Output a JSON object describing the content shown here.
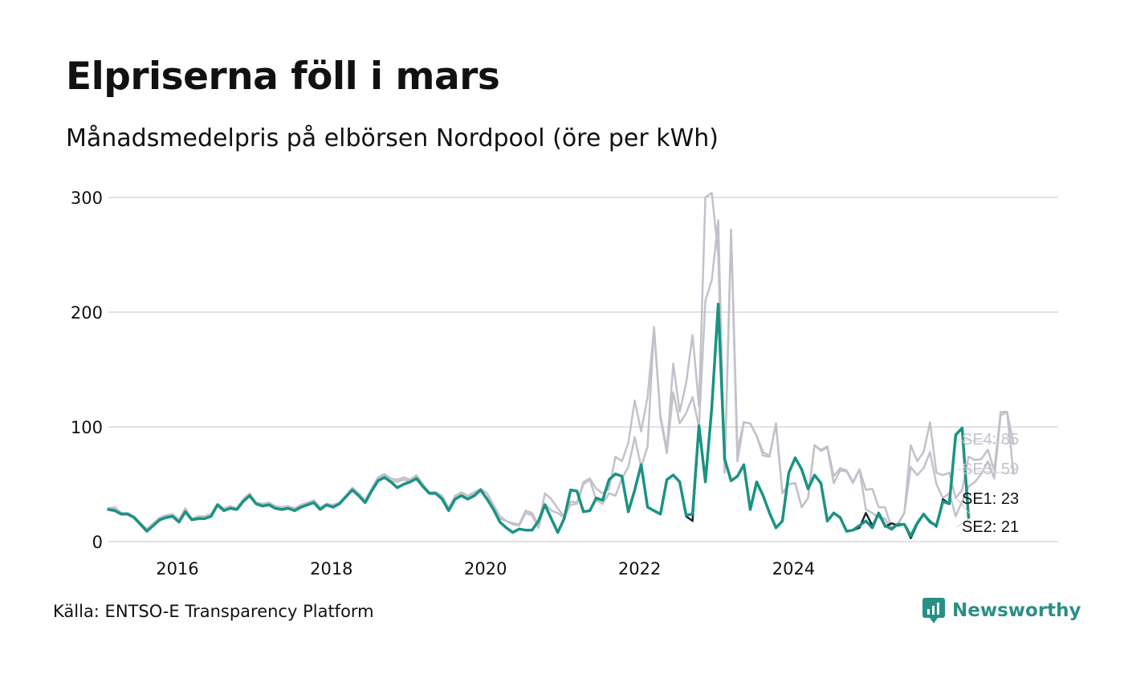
{
  "title": "Elpriserna föll i mars",
  "subtitle": "Månadsmedelpris på elbörsen Nordpool (öre per kWh)",
  "source": "Källa: ENTSO-E Transparency Platform",
  "brand": "Newsworthy",
  "colors": {
    "SE1": "#1b2b2a",
    "SE2": "#1a9383",
    "SE3": "#c2c1cb",
    "SE4": "#c2c1cb",
    "grid": "#e1e1e6",
    "brand": "#2a8f86"
  },
  "chart_data": {
    "type": "line",
    "title": "Elpriserna föll i mars",
    "subtitle": "Månadsmedelpris på elbörsen Nordpool (öre per kWh)",
    "xlabel": "",
    "ylabel": "",
    "ylim": [
      0,
      300
    ],
    "yticks": [
      "0",
      "100",
      "200",
      "300"
    ],
    "ytick_values": [
      0,
      100,
      200,
      300
    ],
    "xlim": [
      2015.0,
      2027.33
    ],
    "xticks": [
      "2016",
      "2018",
      "2020",
      "2022",
      "2024"
    ],
    "xtick_values": [
      2016.0,
      2018.0,
      2020.0,
      2022.0,
      2024.0
    ],
    "x_start": 2015.0,
    "x_step": 0.0833333,
    "grid": true,
    "legend": "end labels at right",
    "end_labels": [
      "SE4: 85",
      "SE3: 59",
      "SE1: 23",
      "SE2: 21"
    ],
    "series": [
      {
        "name": "SE3",
        "end_label": "SE3: 59",
        "values": [
          29,
          29,
          24,
          24,
          21,
          15,
          10,
          15,
          20,
          22,
          23,
          18,
          27,
          19,
          21,
          21,
          23,
          32,
          28,
          30,
          28,
          36,
          41,
          33,
          32,
          33,
          30,
          29,
          30,
          28,
          31,
          33,
          35,
          29,
          32,
          31,
          33,
          39,
          46,
          41,
          35,
          45,
          54,
          57,
          53,
          52,
          54,
          52,
          56,
          49,
          42,
          42,
          38,
          28,
          38,
          41,
          38,
          41,
          45,
          38,
          30,
          20,
          18,
          15,
          14,
          25,
          23,
          12,
          33,
          27,
          25,
          21,
          32,
          33,
          50,
          54,
          36,
          33,
          42,
          40,
          55,
          65,
          91,
          65,
          83,
          187,
          108,
          77,
          130,
          103,
          112,
          126,
          100,
          210,
          228,
          280,
          60,
          270,
          70,
          104,
          103,
          92,
          78,
          75,
          103,
          42,
          50,
          51,
          30,
          38,
          84,
          79,
          82,
          51,
          62,
          61,
          51,
          63,
          28,
          25,
          21,
          20,
          10,
          15,
          25,
          65,
          58,
          64,
          78,
          50,
          38,
          42,
          22,
          35,
          48,
          52,
          59,
          70,
          55,
          110,
          113,
          59
        ]
      },
      {
        "name": "SE4",
        "end_label": "SE4: 85",
        "values": [
          29,
          30,
          25,
          25,
          22,
          16,
          11,
          16,
          21,
          23,
          24,
          19,
          29,
          20,
          22,
          22,
          24,
          33,
          29,
          31,
          29,
          37,
          42,
          34,
          33,
          34,
          31,
          30,
          31,
          29,
          32,
          34,
          36,
          30,
          33,
          32,
          34,
          40,
          47,
          42,
          36,
          46,
          56,
          59,
          55,
          54,
          56,
          54,
          58,
          50,
          43,
          43,
          40,
          29,
          40,
          43,
          40,
          43,
          46,
          42,
          32,
          22,
          18,
          16,
          15,
          27,
          25,
          14,
          42,
          37,
          29,
          22,
          35,
          34,
          52,
          55,
          46,
          42,
          46,
          74,
          70,
          86,
          123,
          96,
          126,
          186,
          110,
          80,
          155,
          113,
          138,
          180,
          118,
          300,
          304,
          250,
          60,
          272,
          80,
          104,
          103,
          92,
          75,
          74,
          103,
          42,
          50,
          51,
          30,
          38,
          84,
          80,
          83,
          57,
          64,
          62,
          52,
          63,
          45,
          46,
          30,
          30,
          12,
          16,
          25,
          84,
          70,
          78,
          104,
          60,
          58,
          60,
          38,
          45,
          74,
          71,
          72,
          80,
          62,
          113,
          113,
          85
        ]
      },
      {
        "name": "SE1",
        "end_label": "SE1: 23",
        "values": [
          28,
          27,
          24,
          24,
          21,
          15,
          9,
          14,
          19,
          21,
          22,
          17,
          26,
          19,
          20,
          20,
          22,
          32,
          27,
          29,
          28,
          35,
          40,
          33,
          31,
          32,
          29,
          28,
          29,
          27,
          30,
          32,
          34,
          28,
          32,
          30,
          33,
          39,
          45,
          40,
          34,
          44,
          53,
          56,
          52,
          47,
          50,
          52,
          55,
          48,
          42,
          42,
          37,
          27,
          37,
          40,
          37,
          40,
          45,
          37,
          28,
          17,
          12,
          8,
          11,
          10,
          10,
          18,
          32,
          20,
          8,
          20,
          45,
          44,
          26,
          27,
          38,
          36,
          54,
          59,
          57,
          26,
          45,
          67,
          30,
          27,
          24,
          54,
          58,
          52,
          22,
          18,
          100,
          52,
          117,
          207,
          72,
          53,
          57,
          67,
          28,
          52,
          40,
          25,
          12,
          18,
          60,
          73,
          63,
          46,
          58,
          51,
          18,
          25,
          21,
          9,
          10,
          12,
          25,
          14,
          24,
          13,
          16,
          14,
          15,
          3,
          15,
          24,
          18,
          13,
          37,
          33,
          93,
          99,
          23
        ]
      },
      {
        "name": "SE2",
        "end_label": "SE2: 21",
        "values": [
          28,
          27,
          24,
          24,
          21,
          15,
          9,
          14,
          19,
          21,
          22,
          17,
          26,
          19,
          20,
          20,
          22,
          32,
          27,
          29,
          28,
          35,
          40,
          33,
          31,
          32,
          29,
          28,
          29,
          27,
          30,
          32,
          34,
          28,
          32,
          30,
          33,
          39,
          45,
          40,
          34,
          44,
          53,
          56,
          52,
          47,
          50,
          52,
          55,
          48,
          42,
          42,
          37,
          27,
          37,
          40,
          37,
          40,
          45,
          37,
          28,
          17,
          12,
          8,
          11,
          10,
          10,
          18,
          32,
          20,
          8,
          20,
          45,
          44,
          26,
          27,
          38,
          36,
          54,
          59,
          57,
          26,
          45,
          67,
          30,
          27,
          24,
          54,
          58,
          52,
          23,
          24,
          101,
          52,
          117,
          207,
          72,
          53,
          57,
          67,
          28,
          52,
          40,
          25,
          12,
          18,
          60,
          73,
          63,
          46,
          58,
          51,
          18,
          25,
          21,
          9,
          10,
          14,
          18,
          12,
          25,
          14,
          11,
          15,
          15,
          5,
          16,
          24,
          17,
          14,
          35,
          33,
          93,
          99,
          21
        ]
      }
    ]
  }
}
